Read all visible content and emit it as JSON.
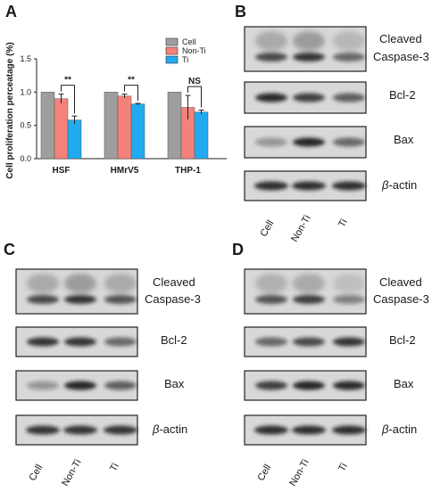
{
  "panels": {
    "a": {
      "letter": "A"
    },
    "b": {
      "letter": "B"
    },
    "c": {
      "letter": "C"
    },
    "d": {
      "letter": "D"
    }
  },
  "chart_data": {
    "type": "bar",
    "ylabel": "Cell proliferation perceatage (%)",
    "xlabel": "",
    "ylim": [
      0,
      1.5
    ],
    "yticks": [
      "0.0",
      "0.5",
      "1.0",
      "1.5"
    ],
    "categories": [
      "HSF",
      "HMrV5",
      "THP-1"
    ],
    "series": [
      {
        "name": "Cell",
        "color": "#9e9e9e",
        "values": [
          1.0,
          1.0,
          1.0
        ],
        "errors": [
          0,
          0,
          0
        ]
      },
      {
        "name": "Non-Ti",
        "color": "#f4827a",
        "values": [
          0.9,
          0.94,
          0.77
        ],
        "errors": [
          0.07,
          0.03,
          0.18
        ]
      },
      {
        "name": "Ti",
        "color": "#21aaf0",
        "values": [
          0.58,
          0.82,
          0.7
        ],
        "errors": [
          0.06,
          0.01,
          0.03
        ]
      }
    ],
    "significance": [
      "**",
      "**",
      "NS"
    ],
    "legend_position": "top-right"
  },
  "blots": {
    "labels": [
      "Cleaved\nCaspase-3",
      "Bcl-2",
      "Bax",
      "β-actin"
    ],
    "cleaved": "Cleaved",
    "caspase": "Caspase-3",
    "bcl2": "Bcl-2",
    "bax": "Bax",
    "beta": "β",
    "actin": "-actin",
    "lanes": [
      "Cell",
      "Non-Ti",
      "Ti"
    ]
  }
}
